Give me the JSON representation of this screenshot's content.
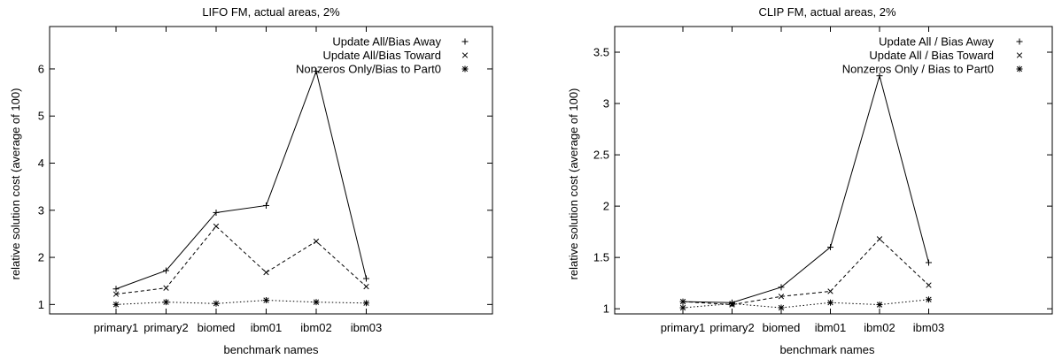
{
  "chart_data": [
    {
      "type": "line",
      "title": "LIFO FM, actual areas, 2%",
      "xlabel": "benchmark names",
      "ylabel": "relative solution cost (average of 100)",
      "categories": [
        "primary1",
        "primary2",
        "biomed",
        "ibm01",
        "ibm02",
        "ibm03"
      ],
      "ylim": [
        0.8,
        6.9
      ],
      "yticks": [
        1,
        2,
        3,
        4,
        5,
        6
      ],
      "ytick_labels": [
        "1",
        "2",
        "3",
        "4",
        "5",
        "6"
      ],
      "legend_position": "top-right",
      "grid": false,
      "series": [
        {
          "name": "Update All/Bias Away",
          "marker": "plus",
          "dash": "solid",
          "values": [
            1.33,
            1.72,
            2.95,
            3.1,
            5.95,
            1.55
          ]
        },
        {
          "name": "Update All/Bias Toward",
          "marker": "cross",
          "dash": "dashed",
          "values": [
            1.22,
            1.35,
            2.66,
            1.68,
            2.34,
            1.38
          ]
        },
        {
          "name": "Nonzeros Only/Bias to Part0",
          "marker": "star",
          "dash": "dotted",
          "values": [
            1.0,
            1.05,
            1.02,
            1.09,
            1.05,
            1.03
          ]
        }
      ]
    },
    {
      "type": "line",
      "title": "CLIP FM, actual areas, 2%",
      "xlabel": "benchmark names",
      "ylabel": "relative solution cost (average of 100)",
      "categories": [
        "primary1",
        "primary2",
        "biomed",
        "ibm01",
        "ibm02",
        "ibm03"
      ],
      "ylim": [
        0.95,
        3.75
      ],
      "yticks": [
        1,
        1.5,
        2,
        2.5,
        3,
        3.5
      ],
      "ytick_labels": [
        "1",
        "1.5",
        "2",
        "2.5",
        "3",
        "3.5"
      ],
      "legend_position": "top-right",
      "grid": false,
      "series": [
        {
          "name": "Update All / Bias Away",
          "marker": "plus",
          "dash": "solid",
          "values": [
            1.07,
            1.06,
            1.21,
            1.6,
            3.27,
            1.45
          ]
        },
        {
          "name": "Update All / Bias Toward",
          "marker": "cross",
          "dash": "dashed",
          "values": [
            1.07,
            1.04,
            1.12,
            1.17,
            1.68,
            1.23
          ]
        },
        {
          "name": "Nonzeros Only / Bias to Part0",
          "marker": "star",
          "dash": "dotted",
          "values": [
            1.01,
            1.05,
            1.01,
            1.06,
            1.04,
            1.09
          ]
        }
      ]
    }
  ]
}
